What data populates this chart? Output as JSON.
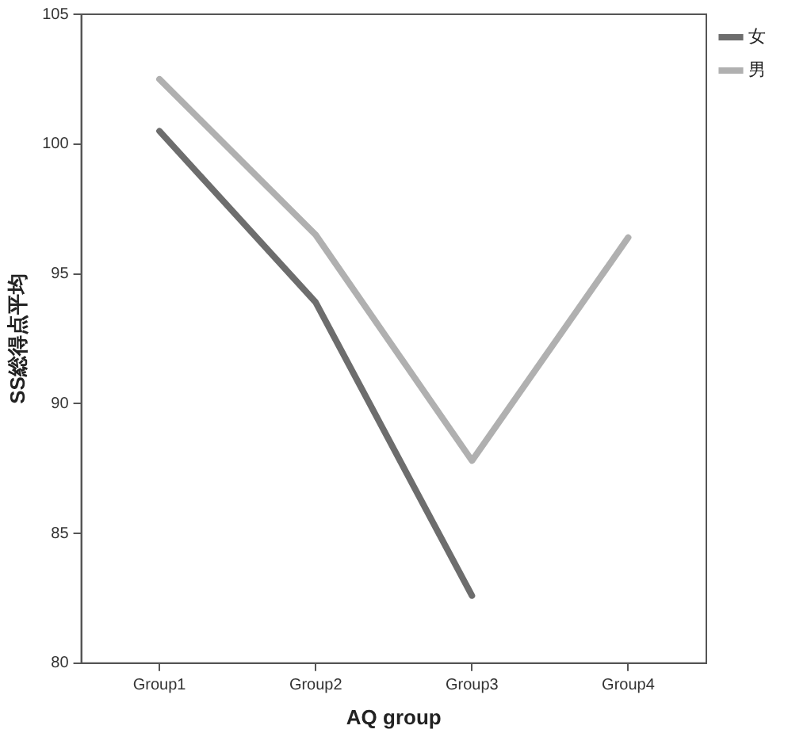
{
  "chart_data": {
    "type": "line",
    "xlabel": "AQ group",
    "ylabel": "SS総得点平均",
    "categories": [
      "Group1",
      "Group2",
      "Group3",
      "Group4"
    ],
    "series": [
      {
        "name": "女",
        "color": "#6d6d6d",
        "values": [
          100.5,
          93.9,
          82.6,
          null
        ]
      },
      {
        "name": "男",
        "color": "#b0b0b0",
        "values": [
          102.5,
          96.5,
          87.8,
          96.4
        ]
      }
    ],
    "ylim": [
      80,
      105
    ],
    "yticks": [
      80,
      85,
      90,
      95,
      100,
      105
    ],
    "grid": false,
    "legend": "right",
    "marker": "none",
    "line_style": "solid"
  }
}
